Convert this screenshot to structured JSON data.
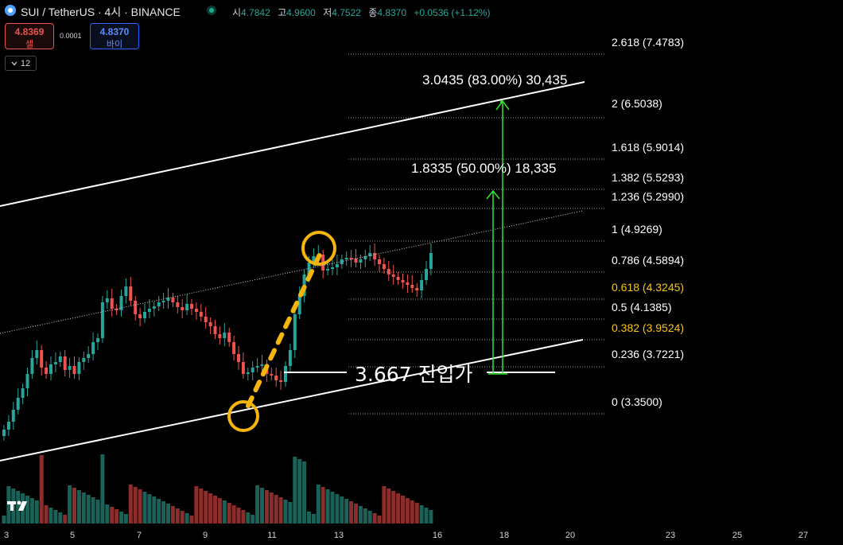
{
  "header": {
    "title": "SUI / TetherUS · 4시 · BINANCE",
    "open_label": "시",
    "open": "4.7842",
    "high_label": "고",
    "high": "4.9600",
    "low_label": "저",
    "low": "4.7522",
    "close_label": "종",
    "close": "4.8370",
    "change": "+0.0536 (+1.12%)"
  },
  "trade": {
    "sell_price": "4.8369",
    "sell_label": "셀",
    "spread": "0.0001",
    "buy_price": "4.8370",
    "buy_label": "바이"
  },
  "interval_badge": {
    "icon": "chevron-down-icon",
    "value": "12"
  },
  "fib_levels": [
    {
      "label": "2.618 (7.4783)",
      "color": "#ffffff"
    },
    {
      "label": "2 (6.5038)",
      "color": "#ffffff"
    },
    {
      "label": "1.618 (5.9014)",
      "color": "#ffffff"
    },
    {
      "label": "1.382 (5.5293)",
      "color": "#ffffff"
    },
    {
      "label": "1.236 (5.2990)",
      "color": "#ffffff"
    },
    {
      "label": "1 (4.9269)",
      "color": "#ffffff"
    },
    {
      "label": "0.786 (4.5894)",
      "color": "#ffffff"
    },
    {
      "label": "0.618 (4.3245)",
      "color": "#f9c513"
    },
    {
      "label": "0.5 (4.1385)",
      "color": "#ffffff"
    },
    {
      "label": "0.382 (3.9524)",
      "color": "#f9c513"
    },
    {
      "label": "0.236 (3.7221)",
      "color": "#ffffff"
    },
    {
      "label": "0 (3.3500)",
      "color": "#ffffff"
    }
  ],
  "annotations": {
    "target2": "3.0435 (83.00%) 30,435",
    "target1": "1.8335 (50.00%) 18,335",
    "entry": "3.667 진입가"
  },
  "x_axis": [
    "3",
    "5",
    "7",
    "9",
    "11",
    "13",
    "16",
    "18",
    "20",
    "23",
    "25",
    "27"
  ],
  "colors": {
    "up": "#26a69a",
    "down": "#ef5350",
    "vol_up": "#1b6158",
    "vol_down": "#8a2d2b",
    "highlight_circle": "#f5b50c",
    "target_arrow": "#2ee62e",
    "fib_yellow": "#f9c513"
  },
  "icons": [
    "sui-logo-icon",
    "live-dot-icon",
    "chevron-down-icon",
    "tradingview-logo-icon"
  ]
}
